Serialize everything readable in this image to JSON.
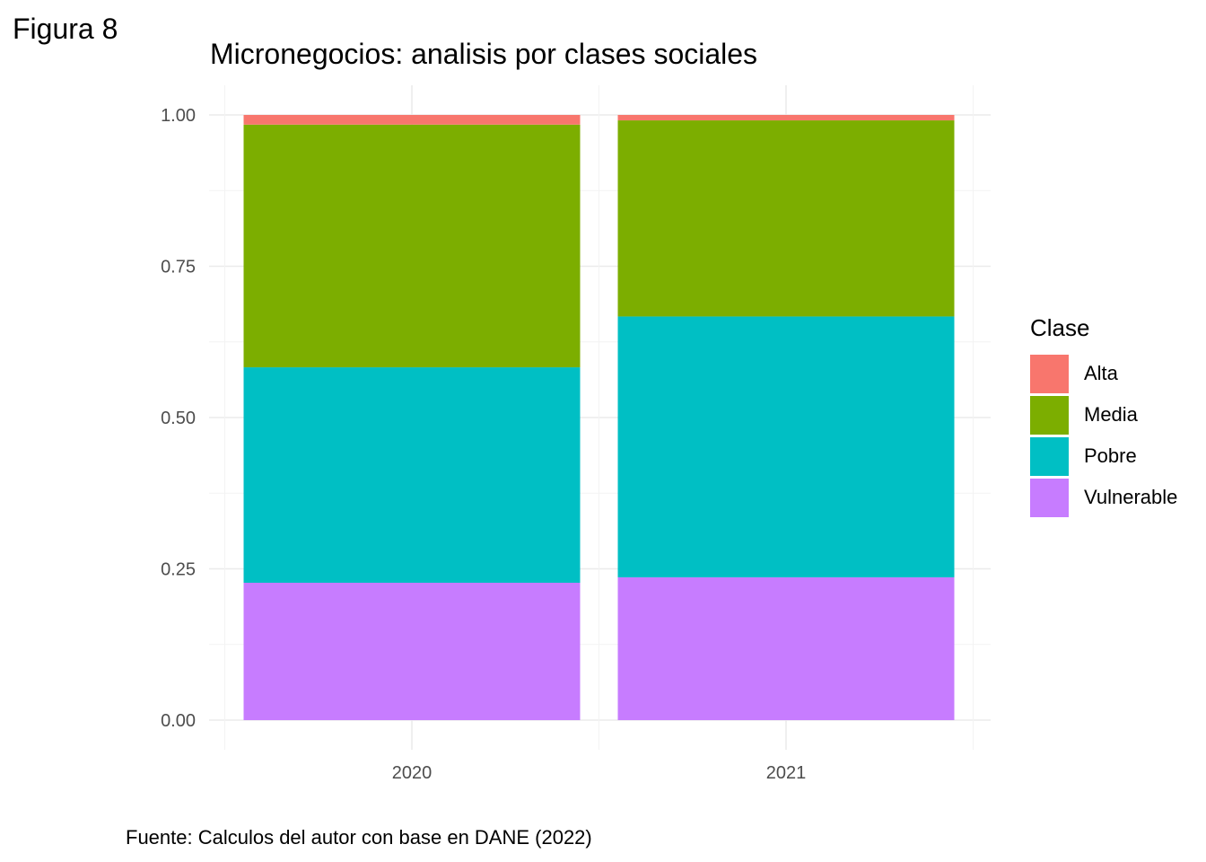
{
  "figure_label": "Figura 8",
  "caption": "Fuente: Calculos del autor con base en DANE (2022)",
  "chart_data": {
    "type": "bar",
    "stacked": true,
    "title": "Micronegocios: analisis por clases sociales",
    "xlabel": "",
    "ylabel": "",
    "categories": [
      "2020",
      "2021"
    ],
    "ylim": [
      0,
      1
    ],
    "yticks": [
      "0.00",
      "0.25",
      "0.50",
      "0.75",
      "1.00"
    ],
    "ytick_values": [
      0,
      0.25,
      0.5,
      0.75,
      1.0
    ],
    "grid": true,
    "legend_title": "Clase",
    "legend_position": "right",
    "series": [
      {
        "name": "Vulnerable",
        "color": "#C77CFF",
        "values": [
          0.227,
          0.236
        ]
      },
      {
        "name": "Pobre",
        "color": "#00BFC4",
        "values": [
          0.356,
          0.431
        ]
      },
      {
        "name": "Media",
        "color": "#7CAE00",
        "values": [
          0.401,
          0.324
        ]
      },
      {
        "name": "Alta",
        "color": "#F8766D",
        "values": [
          0.016,
          0.009
        ]
      }
    ],
    "legend_order": [
      "Alta",
      "Media",
      "Pobre",
      "Vulnerable"
    ]
  }
}
